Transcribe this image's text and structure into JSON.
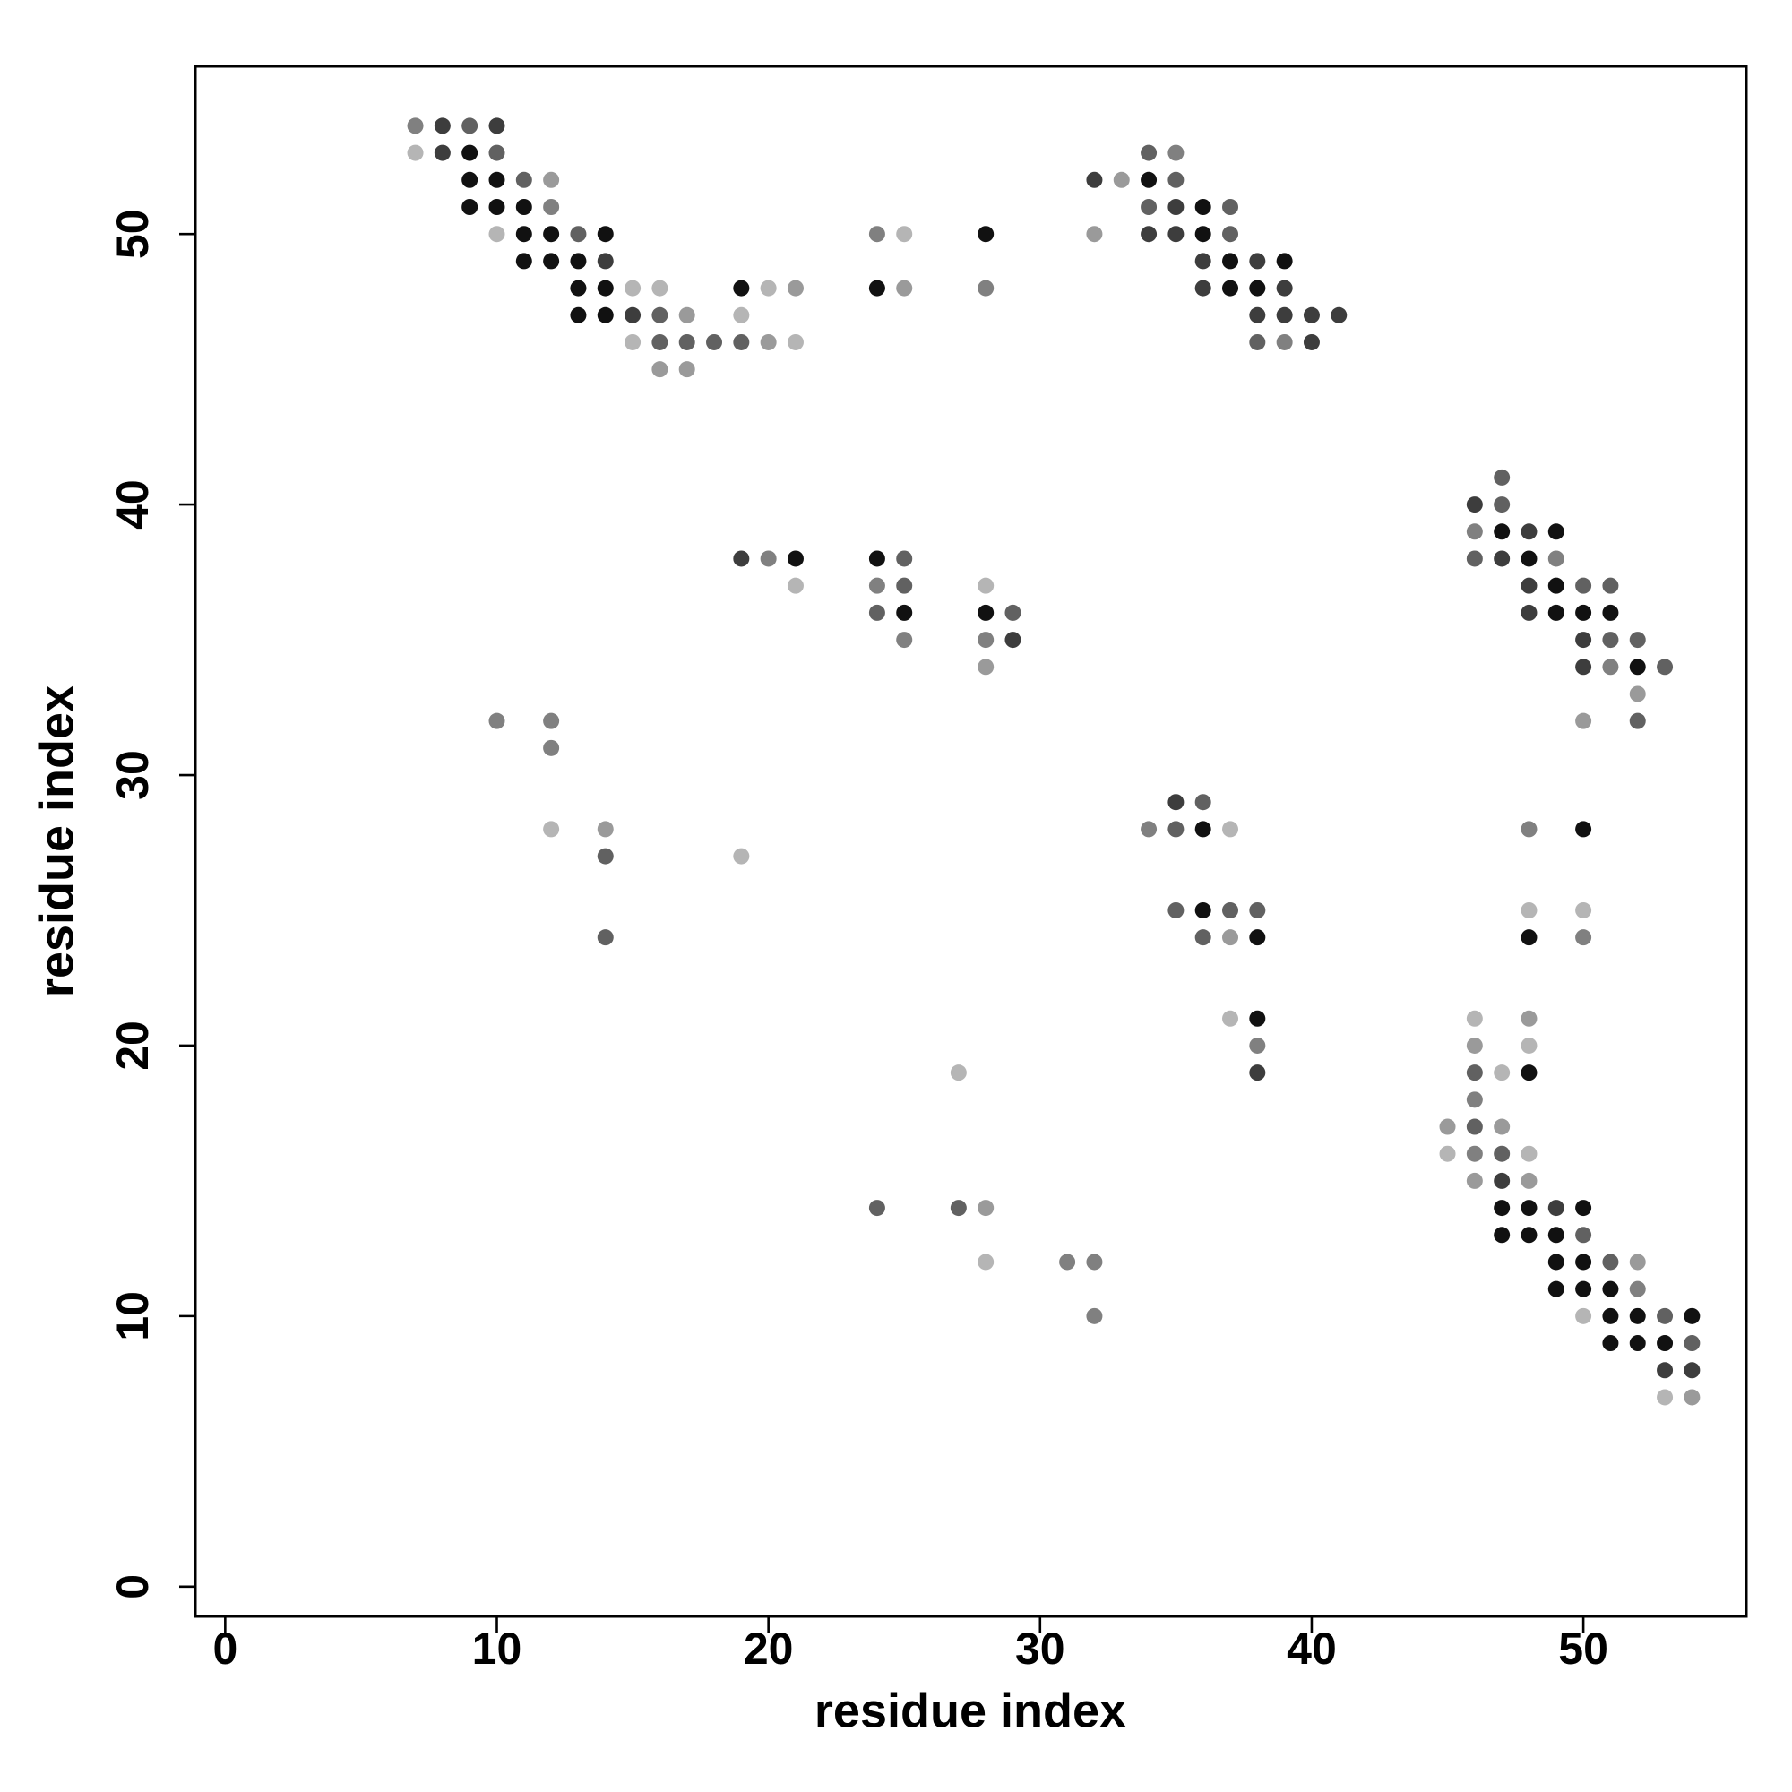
{
  "chart_data": {
    "type": "scatter",
    "x_label": "residue index",
    "y_label": "residue index",
    "xlim": [
      -1.1,
      56.0
    ],
    "ylim": [
      -1.1,
      56.2
    ],
    "xticks": [
      0,
      10,
      20,
      30,
      40,
      50
    ],
    "yticks": [
      0,
      10,
      20,
      30,
      40,
      50
    ],
    "grid": false,
    "series": [
      {
        "color": "#111111",
        "x": [
          9,
          9,
          10,
          34,
          9,
          10,
          11,
          36,
          11,
          12,
          14,
          28,
          36,
          11,
          12,
          13,
          37,
          39,
          13,
          14,
          19,
          24,
          37,
          38,
          13,
          14,
          47,
          49,
          21,
          24,
          48,
          49,
          25,
          28,
          49,
          50,
          51,
          52,
          36,
          50,
          36,
          38,
          48,
          38,
          48,
          47,
          48,
          50,
          47,
          48,
          49,
          49,
          50,
          49,
          50,
          51,
          51,
          52,
          54,
          51,
          52,
          53
        ],
        "y": [
          53,
          52,
          52,
          52,
          51,
          51,
          51,
          51,
          50,
          50,
          50,
          50,
          50,
          49,
          49,
          49,
          49,
          49,
          48,
          48,
          48,
          48,
          48,
          48,
          47,
          47,
          39,
          39,
          38,
          38,
          38,
          37,
          36,
          36,
          36,
          36,
          36,
          34,
          28,
          28,
          25,
          24,
          24,
          21,
          19,
          14,
          14,
          14,
          13,
          13,
          13,
          12,
          12,
          11,
          11,
          11,
          10,
          10,
          10,
          9,
          9,
          9
        ]
      },
      {
        "color": "#3d3d3d",
        "x": [
          8,
          10,
          8,
          32,
          35,
          34,
          35,
          14,
          36,
          38,
          36,
          39,
          15,
          38,
          39,
          40,
          41,
          40,
          46,
          48,
          19,
          47,
          48,
          48,
          29,
          50,
          50,
          35,
          38,
          47,
          49,
          53,
          54
        ],
        "y": [
          54,
          54,
          53,
          52,
          51,
          50,
          50,
          49,
          49,
          49,
          48,
          48,
          47,
          47,
          47,
          47,
          47,
          46,
          40,
          39,
          38,
          38,
          37,
          36,
          35,
          35,
          34,
          29,
          19,
          15,
          14,
          8,
          8
        ]
      },
      {
        "color": "#616161",
        "x": [
          9,
          10,
          34,
          11,
          35,
          34,
          37,
          13,
          37,
          16,
          16,
          17,
          18,
          19,
          38,
          47,
          47,
          25,
          46,
          25,
          50,
          51,
          24,
          29,
          51,
          52,
          53,
          52,
          36,
          35,
          14,
          35,
          37,
          38,
          14,
          36,
          46,
          46,
          47,
          24,
          27,
          50,
          51,
          53,
          54
        ],
        "y": [
          54,
          53,
          53,
          52,
          52,
          51,
          51,
          50,
          50,
          47,
          46,
          46,
          46,
          46,
          46,
          41,
          40,
          38,
          38,
          37,
          37,
          37,
          36,
          36,
          35,
          35,
          34,
          32,
          29,
          28,
          27,
          25,
          25,
          25,
          24,
          24,
          19,
          17,
          16,
          14,
          14,
          13,
          12,
          10,
          9
        ]
      },
      {
        "color": "#808080",
        "x": [
          7,
          35,
          12,
          24,
          28,
          39,
          46,
          20,
          49,
          24,
          25,
          28,
          51,
          10,
          12,
          12,
          34,
          48,
          50,
          38,
          46,
          46,
          31,
          32,
          52,
          32
        ],
        "y": [
          54,
          53,
          51,
          50,
          48,
          46,
          39,
          38,
          38,
          37,
          35,
          35,
          34,
          32,
          32,
          31,
          28,
          28,
          24,
          20,
          18,
          16,
          12,
          12,
          11,
          10
        ]
      },
      {
        "color": "#9a9a9a",
        "x": [
          12,
          33,
          32,
          21,
          25,
          17,
          20,
          16,
          17,
          28,
          52,
          50,
          14,
          37,
          48,
          46,
          45,
          47,
          46,
          48,
          28,
          52,
          54
        ],
        "y": [
          52,
          52,
          50,
          48,
          48,
          47,
          46,
          45,
          45,
          34,
          33,
          32,
          28,
          24,
          21,
          20,
          17,
          17,
          15,
          15,
          14,
          12,
          7
        ]
      },
      {
        "color": "#b5b5b5",
        "x": [
          7,
          10,
          25,
          15,
          16,
          20,
          19,
          15,
          21,
          21,
          28,
          12,
          37,
          19,
          48,
          50,
          37,
          46,
          48,
          27,
          47,
          45,
          48,
          28,
          50,
          53
        ],
        "y": [
          53,
          50,
          50,
          48,
          48,
          48,
          47,
          46,
          46,
          37,
          37,
          28,
          28,
          27,
          25,
          25,
          21,
          21,
          20,
          19,
          19,
          16,
          16,
          12,
          10,
          7
        ]
      }
    ]
  }
}
